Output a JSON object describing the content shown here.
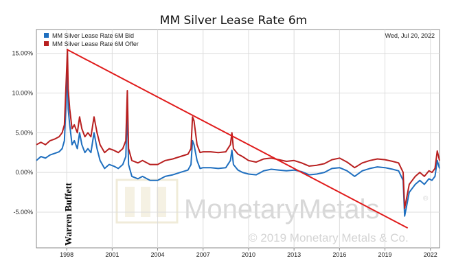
{
  "chart_data": {
    "type": "line",
    "title": "MM Silver Lease Rate 6m",
    "date_label": "Wed, Jul 20, 2022",
    "xlabel": "",
    "ylabel": "",
    "x_ticks": [
      "1998",
      "2001",
      "2004",
      "2007",
      "2010",
      "2013",
      "2016",
      "2019",
      "2022"
    ],
    "y_ticks": [
      "15.00%",
      "10.00%",
      "5.00%",
      "0.00%",
      "-5.00%"
    ],
    "xlim": [
      1996.0,
      2022.6
    ],
    "ylim": [
      -9.5,
      18.0
    ],
    "grid": true,
    "legend_position": "top-left",
    "watermark": {
      "text": "MonetaryMetals",
      "copyright": "© 2019 Monetary Metals & Co.",
      "registered": "®"
    },
    "annotations": {
      "vertical_text": "Warren Buffett",
      "trendline": {
        "color": "#e01b1b",
        "from": {
          "x": 1998.0,
          "y": 15.5
        },
        "to": {
          "x": 2020.5,
          "y": -7.0
        }
      }
    },
    "series": [
      {
        "name": "MM Silver Lease Rate 6M Bid",
        "color": "#1f6fbf",
        "points": [
          [
            1996.0,
            1.5
          ],
          [
            1996.3,
            2.0
          ],
          [
            1996.6,
            1.8
          ],
          [
            1996.9,
            2.2
          ],
          [
            1997.2,
            2.4
          ],
          [
            1997.5,
            2.6
          ],
          [
            1997.7,
            3.0
          ],
          [
            1997.85,
            4.0
          ],
          [
            1998.0,
            10.5
          ],
          [
            1998.05,
            13.5
          ],
          [
            1998.1,
            8.0
          ],
          [
            1998.2,
            6.0
          ],
          [
            1998.35,
            3.5
          ],
          [
            1998.5,
            4.0
          ],
          [
            1998.7,
            3.0
          ],
          [
            1998.85,
            5.0
          ],
          [
            1999.0,
            3.5
          ],
          [
            1999.2,
            2.5
          ],
          [
            1999.4,
            3.0
          ],
          [
            1999.6,
            2.5
          ],
          [
            1999.8,
            5.0
          ],
          [
            2000.0,
            3.0
          ],
          [
            2000.2,
            1.5
          ],
          [
            2000.5,
            0.5
          ],
          [
            2000.8,
            1.0
          ],
          [
            2001.1,
            0.8
          ],
          [
            2001.4,
            0.5
          ],
          [
            2001.7,
            1.0
          ],
          [
            2001.9,
            2.0
          ],
          [
            2002.0,
            8.0
          ],
          [
            2002.08,
            1.0
          ],
          [
            2002.3,
            -0.5
          ],
          [
            2002.7,
            -0.8
          ],
          [
            2003.0,
            -0.5
          ],
          [
            2003.5,
            -1.0
          ],
          [
            2004.0,
            -1.0
          ],
          [
            2004.5,
            -0.5
          ],
          [
            2005.0,
            -0.3
          ],
          [
            2005.5,
            0.0
          ],
          [
            2006.0,
            0.3
          ],
          [
            2006.2,
            1.0
          ],
          [
            2006.3,
            4.0
          ],
          [
            2006.4,
            3.5
          ],
          [
            2006.6,
            1.5
          ],
          [
            2006.8,
            0.5
          ],
          [
            2007.0,
            0.6
          ],
          [
            2007.5,
            0.6
          ],
          [
            2008.0,
            0.5
          ],
          [
            2008.5,
            0.6
          ],
          [
            2008.8,
            1.5
          ],
          [
            2008.9,
            2.8
          ],
          [
            2009.0,
            1.0
          ],
          [
            2009.3,
            0.3
          ],
          [
            2009.6,
            0.0
          ],
          [
            2010.0,
            -0.2
          ],
          [
            2010.5,
            -0.3
          ],
          [
            2011.0,
            0.2
          ],
          [
            2011.5,
            0.4
          ],
          [
            2012.0,
            0.3
          ],
          [
            2012.5,
            0.2
          ],
          [
            2013.0,
            0.3
          ],
          [
            2013.5,
            0.1
          ],
          [
            2014.0,
            -0.3
          ],
          [
            2014.5,
            -0.2
          ],
          [
            2015.0,
            0.0
          ],
          [
            2015.5,
            0.5
          ],
          [
            2016.0,
            0.6
          ],
          [
            2016.5,
            0.2
          ],
          [
            2017.0,
            -0.5
          ],
          [
            2017.5,
            0.2
          ],
          [
            2018.0,
            0.5
          ],
          [
            2018.5,
            0.7
          ],
          [
            2019.0,
            0.6
          ],
          [
            2019.5,
            0.4
          ],
          [
            2019.9,
            0.2
          ],
          [
            2020.2,
            -1.0
          ],
          [
            2020.3,
            -5.5
          ],
          [
            2020.45,
            -4.0
          ],
          [
            2020.6,
            -2.5
          ],
          [
            2020.8,
            -2.0
          ],
          [
            2021.0,
            -1.5
          ],
          [
            2021.3,
            -1.0
          ],
          [
            2021.6,
            -1.5
          ],
          [
            2021.9,
            -0.8
          ],
          [
            2022.1,
            -1.0
          ],
          [
            2022.3,
            -0.5
          ],
          [
            2022.45,
            1.5
          ],
          [
            2022.6,
            0.5
          ]
        ]
      },
      {
        "name": "MM Silver Lease Rate 6M Offer",
        "color": "#b81f1f",
        "points": [
          [
            1996.0,
            3.5
          ],
          [
            1996.3,
            3.8
          ],
          [
            1996.6,
            3.5
          ],
          [
            1996.9,
            4.0
          ],
          [
            1997.2,
            4.2
          ],
          [
            1997.5,
            4.5
          ],
          [
            1997.7,
            5.0
          ],
          [
            1997.85,
            6.0
          ],
          [
            1998.0,
            13.0
          ],
          [
            1998.05,
            15.5
          ],
          [
            1998.1,
            10.5
          ],
          [
            1998.2,
            8.0
          ],
          [
            1998.35,
            5.5
          ],
          [
            1998.5,
            6.0
          ],
          [
            1998.7,
            5.0
          ],
          [
            1998.85,
            7.0
          ],
          [
            1999.0,
            5.5
          ],
          [
            1999.2,
            4.5
          ],
          [
            1999.4,
            5.0
          ],
          [
            1999.6,
            4.5
          ],
          [
            1999.8,
            7.0
          ],
          [
            2000.0,
            5.0
          ],
          [
            2000.2,
            3.5
          ],
          [
            2000.5,
            2.5
          ],
          [
            2000.8,
            3.0
          ],
          [
            2001.1,
            2.8
          ],
          [
            2001.4,
            2.5
          ],
          [
            2001.7,
            3.0
          ],
          [
            2001.9,
            4.0
          ],
          [
            2002.0,
            10.3
          ],
          [
            2002.08,
            3.0
          ],
          [
            2002.3,
            1.5
          ],
          [
            2002.7,
            1.2
          ],
          [
            2003.0,
            1.5
          ],
          [
            2003.5,
            1.0
          ],
          [
            2004.0,
            1.0
          ],
          [
            2004.5,
            1.5
          ],
          [
            2005.0,
            1.7
          ],
          [
            2005.5,
            2.0
          ],
          [
            2006.0,
            2.3
          ],
          [
            2006.2,
            3.0
          ],
          [
            2006.3,
            7.0
          ],
          [
            2006.4,
            6.5
          ],
          [
            2006.6,
            3.5
          ],
          [
            2006.8,
            2.5
          ],
          [
            2007.0,
            2.6
          ],
          [
            2007.5,
            2.6
          ],
          [
            2008.0,
            2.5
          ],
          [
            2008.5,
            2.6
          ],
          [
            2008.8,
            3.5
          ],
          [
            2008.9,
            5.0
          ],
          [
            2009.0,
            3.0
          ],
          [
            2009.3,
            2.3
          ],
          [
            2009.6,
            2.0
          ],
          [
            2010.0,
            1.5
          ],
          [
            2010.5,
            1.3
          ],
          [
            2011.0,
            1.7
          ],
          [
            2011.5,
            1.8
          ],
          [
            2012.0,
            1.6
          ],
          [
            2012.5,
            1.4
          ],
          [
            2013.0,
            1.5
          ],
          [
            2013.5,
            1.2
          ],
          [
            2014.0,
            0.8
          ],
          [
            2014.5,
            0.9
          ],
          [
            2015.0,
            1.1
          ],
          [
            2015.5,
            1.6
          ],
          [
            2016.0,
            1.8
          ],
          [
            2016.5,
            1.3
          ],
          [
            2017.0,
            0.6
          ],
          [
            2017.5,
            1.2
          ],
          [
            2018.0,
            1.5
          ],
          [
            2018.5,
            1.7
          ],
          [
            2019.0,
            1.6
          ],
          [
            2019.5,
            1.4
          ],
          [
            2019.9,
            1.2
          ],
          [
            2020.2,
            0.0
          ],
          [
            2020.3,
            -4.5
          ],
          [
            2020.45,
            -3.0
          ],
          [
            2020.6,
            -1.5
          ],
          [
            2020.8,
            -1.0
          ],
          [
            2021.0,
            -0.5
          ],
          [
            2021.3,
            0.0
          ],
          [
            2021.6,
            -0.5
          ],
          [
            2021.9,
            0.2
          ],
          [
            2022.1,
            0.0
          ],
          [
            2022.3,
            0.5
          ],
          [
            2022.45,
            2.7
          ],
          [
            2022.6,
            1.5
          ]
        ]
      }
    ]
  }
}
